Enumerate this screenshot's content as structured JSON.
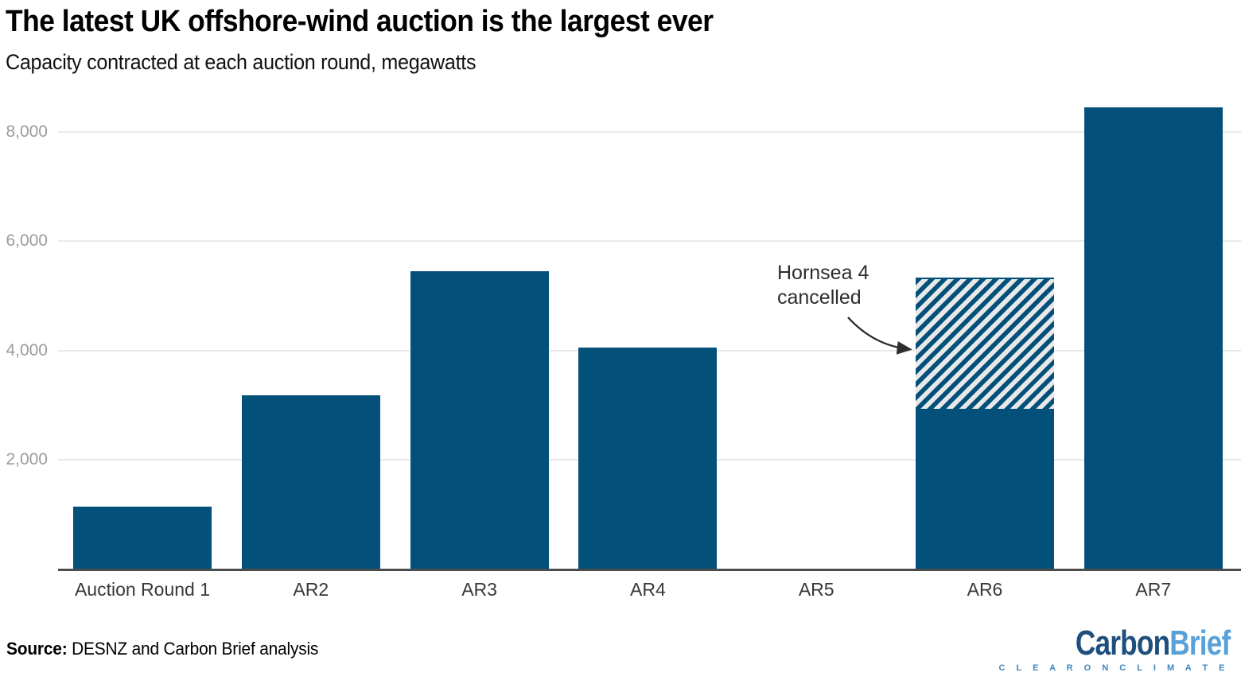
{
  "header": {
    "title": "The latest UK offshore-wind auction is the largest ever",
    "subtitle": "Capacity contracted at each auction round, megawatts"
  },
  "chart_data": {
    "type": "bar",
    "title": "The latest UK offshore-wind auction is the largest ever",
    "subtitle": "Capacity contracted at each auction round, megawatts",
    "unit": "megawatts",
    "categories": [
      "Auction Round 1",
      "AR2",
      "AR3",
      "AR4",
      "AR5",
      "AR6",
      "AR7"
    ],
    "series": [
      {
        "name": "Capacity contracted",
        "style": "solid",
        "values": [
          1150,
          3190,
          5450,
          4050,
          0,
          2940,
          8450
        ]
      },
      {
        "name": "Hornsea 4 cancelled",
        "style": "hatched",
        "values": [
          0,
          0,
          0,
          0,
          0,
          2400,
          0
        ]
      }
    ],
    "y_ticks": [
      2000,
      4000,
      6000,
      8000
    ],
    "y_tick_labels": [
      "2,000",
      "4,000",
      "6,000",
      "8,000"
    ],
    "ylim": [
      0,
      8700
    ],
    "grid": "horizontal",
    "legend": "none",
    "annotation": {
      "line1": "Hornsea 4",
      "line2": "cancelled",
      "points_to": "hatched segment of AR6"
    },
    "colors": {
      "bar": "#03517a",
      "hatch_background": "#e8e8e8",
      "gridline": "#e9e9e9",
      "axis_line": "#4c4c4c",
      "y_tick_text": "#9b9b9b",
      "x_tick_text": "#383838"
    }
  },
  "annotation": {
    "line1": "Hornsea 4",
    "line2": "cancelled"
  },
  "footer": {
    "source_label": "Source:",
    "source_text": " DESNZ and Carbon Brief analysis",
    "logo": {
      "carbon": "Carbon",
      "brief": "Brief",
      "tagline": "C L E A R   O N   C L I M A T E",
      "carbon_color": "#1d4e7c",
      "brief_color": "#58a0d8",
      "tagline_color": "#3d85bd"
    }
  }
}
